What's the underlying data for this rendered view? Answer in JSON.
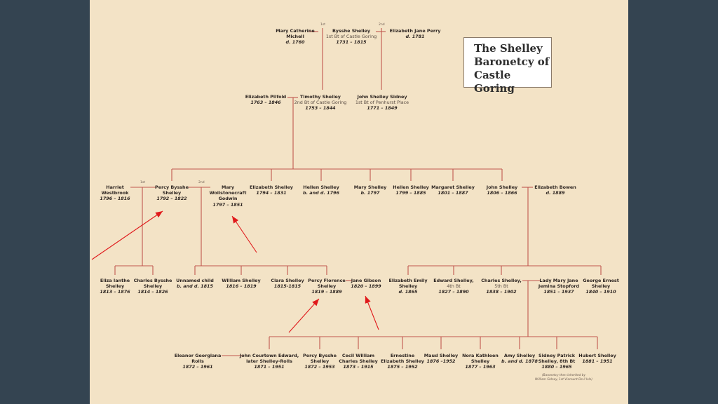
{
  "title": [
    "The Shelley",
    "Baronetcy of",
    "Castle Goring"
  ],
  "ordinals": {
    "first": "1st",
    "second": "2nd"
  },
  "people": {
    "mary_catherine": {
      "name": [
        "Mary Catherine",
        "Michell"
      ],
      "dates": "d. 1760"
    },
    "bysshe": {
      "name": [
        "Bysshe Shelley"
      ],
      "title": "1st Bt of Castle Goring",
      "dates": "1731 – 1815"
    },
    "elizabeth_jane": {
      "name": [
        "Elizabeth Jane Perry"
      ],
      "dates": "d. 1781"
    },
    "elizabeth_pilfold": {
      "name": [
        "Elizabeth Pilfold"
      ],
      "dates": "1763 – 1846"
    },
    "timothy": {
      "name": [
        "Timothy Shelley"
      ],
      "title": "2nd Bt of Castle Goring",
      "dates": "1753 – 1844"
    },
    "john_sidney": {
      "name": [
        "John Shelley Sidney"
      ],
      "title": "1st Bt of Penhurst Place",
      "dates": "1771 – 1849"
    },
    "harriet": {
      "name": [
        "Harriet",
        "Westbrook"
      ],
      "dates": "1796 – 1816"
    },
    "percy_bysshe": {
      "name": [
        "Percy Bysshe",
        "Shelley"
      ],
      "dates": "1792 – 1822"
    },
    "mary_wollstonecraft": {
      "name": [
        "Mary",
        "Wollstonecraft",
        "Godwin"
      ],
      "dates": "1797 – 1851"
    },
    "elizabeth_s": {
      "name": [
        "Elizabeth Shelley"
      ],
      "dates": "1794 – 1831"
    },
    "hellen1": {
      "name": [
        "Hellen Shelley"
      ],
      "dates": "b. and d. 1796"
    },
    "mary_s": {
      "name": [
        "Mary Shelley"
      ],
      "dates": "b. 1797"
    },
    "hellen2": {
      "name": [
        "Hellen Shelley"
      ],
      "dates": "1799 – 1885"
    },
    "margaret": {
      "name": [
        "Margaret Shelley"
      ],
      "dates": "1801 – 1887"
    },
    "john_s": {
      "name": [
        "John Shelley"
      ],
      "dates": "1806 – 1866"
    },
    "elizabeth_bowen": {
      "name": [
        "Elizabeth Bowen"
      ],
      "dates": "d. 1889"
    },
    "eliza_ianthe": {
      "name": [
        "Eliza Ianthe",
        "Shelley"
      ],
      "dates": "1813 – 1876"
    },
    "charles_bysshe": {
      "name": [
        "Charles Bysshe",
        "Shelley"
      ],
      "dates": "1814 – 1826"
    },
    "unnamed": {
      "name": [
        "Unnamed child"
      ],
      "dates": "b. and d. 1815"
    },
    "william": {
      "name": [
        "William Shelley"
      ],
      "dates": "1816 – 1819"
    },
    "clara": {
      "name": [
        "Clara Shelley"
      ],
      "dates": "1815-1815"
    },
    "percy_florence": {
      "name": [
        "Percy Florence",
        "Shelley"
      ],
      "dates": "1819 – 1889"
    },
    "jane_gibson": {
      "name": [
        "Jane Gibson"
      ],
      "dates": "1820 – 1899"
    },
    "elizabeth_emily": {
      "name": [
        "Elizabeth Emily",
        "Shelley"
      ],
      "dates": "d. 1865"
    },
    "edward": {
      "name": [
        "Edward Shelley,"
      ],
      "title": "4th Bt",
      "dates": "1827 – 1890"
    },
    "charles_5": {
      "name": [
        "Charles Shelley,"
      ],
      "title": "5th Bt",
      "dates": "1838 – 1902"
    },
    "lady_mary": {
      "name": [
        "Lady Mary Jane",
        "Jemina Stopford"
      ],
      "dates": "1851 – 1937"
    },
    "george": {
      "name": [
        "George Ernest",
        "Shelley"
      ],
      "dates": "1840 – 1910"
    },
    "eleanor": {
      "name": [
        "Eleanor Georgiana",
        "Rolls"
      ],
      "dates": "1872 – 1961"
    },
    "john_courtown": {
      "name": [
        "John Courtown Edward,",
        "later Shelley-Rolls"
      ],
      "dates": "1871 – 1951"
    },
    "percy_bysshe2": {
      "name": [
        "Percy Bysshe",
        "Shelley"
      ],
      "dates": "1872 – 1953"
    },
    "cecil": {
      "name": [
        "Cecil William",
        "Charles Shelley"
      ],
      "dates": "1873 – 1915"
    },
    "ernestine": {
      "name": [
        "Ernestine",
        "Elizabeth Shelley"
      ],
      "dates": "1875 – 1952"
    },
    "maud": {
      "name": [
        "Maud Shelley"
      ],
      "dates": "1876 –1952"
    },
    "nora": {
      "name": [
        "Nora Kathleen",
        "Shelley"
      ],
      "dates": "1877 – 1963"
    },
    "amy": {
      "name": [
        "Amy Shelley"
      ],
      "dates": "b. and d. 1878"
    },
    "sidney_patrick": {
      "name": [
        "Sidney Patrick",
        "Shelley, 8th Bt"
      ],
      "dates": "1880 – 1965"
    },
    "hubert": {
      "name": [
        "Hubert Shelley"
      ],
      "dates": "1881 – 1951"
    }
  },
  "footnote": [
    "(Baronetcy then inherited by",
    "William Sidney, 1st Viscount De L'Isle)"
  ],
  "colors": {
    "line": "#c0574f",
    "arrow": "#e0191b",
    "paper": "#f3e3c6",
    "frame": "#344451"
  }
}
